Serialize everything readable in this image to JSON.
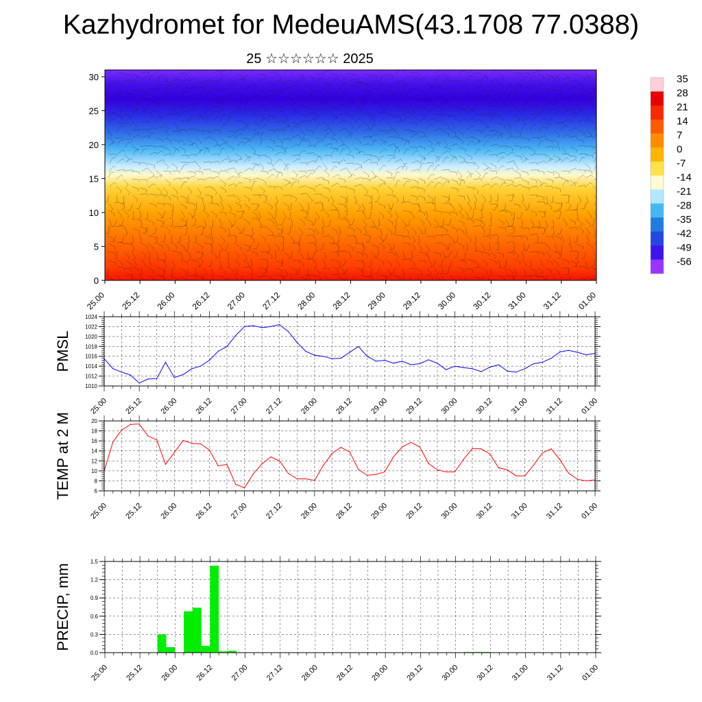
{
  "title": "Kazhydromet for MedeuAMS(43.1708 77.0388)",
  "subtitle": "25 ☆☆☆☆☆☆ 2025",
  "colors": {
    "pmsl_line": "#0000ff",
    "temp_line": "#ff0000",
    "precip_bar": "#00ee00"
  },
  "chart_data": [
    {
      "type": "heatmap",
      "title": "",
      "ylabel": "",
      "ylim": [
        0,
        31
      ],
      "y_ticks": [
        "0",
        "5",
        "10",
        "15",
        "20",
        "25",
        "30"
      ],
      "x_ticks": [
        "25.00",
        "25.12",
        "26.00",
        "26.12",
        "27.00",
        "27.12",
        "28.00",
        "28.12",
        "29.00",
        "29.12",
        "30.00",
        "30.12",
        "31.00",
        "31.12",
        "01.00"
      ],
      "colorbar": {
        "labels": [
          "35",
          "28",
          "21",
          "14",
          "7",
          "0",
          "-7",
          "-14",
          "-21",
          "-28",
          "-35",
          "-42",
          "-49",
          "-56"
        ],
        "colors": [
          "#ffd0d8",
          "#e80000",
          "#f52a00",
          "#ff5a00",
          "#ff8c00",
          "#ffb400",
          "#ffe14a",
          "#fffbd2",
          "#b0e8ff",
          "#45b8f4",
          "#1f7de0",
          "#2348e0",
          "#3d14ee",
          "#9b33ff"
        ]
      },
      "wind_barbs": true
    },
    {
      "type": "line",
      "ylabel": "PMSL",
      "ylim": [
        1010,
        1024
      ],
      "y_ticks": [
        "1010",
        "1012",
        "1014",
        "1016",
        "1018",
        "1020",
        "1022",
        "1024"
      ],
      "x_ticks": [
        "25.00",
        "25.12",
        "26.00",
        "26.12",
        "27.00",
        "27.12",
        "28.00",
        "28.12",
        "29.00",
        "29.12",
        "30.00",
        "30.12",
        "31.00",
        "31.12",
        "01.00"
      ],
      "grid": true,
      "series": [
        {
          "x": [
            0,
            3,
            6,
            9,
            12,
            15,
            18,
            21,
            24,
            27,
            30,
            33,
            36,
            39,
            42,
            45,
            48,
            51,
            54,
            57,
            60,
            63,
            66,
            69,
            72,
            75,
            78,
            81,
            84,
            87,
            90,
            93,
            96,
            99,
            102,
            105,
            108,
            111,
            114,
            117,
            120,
            123,
            126,
            129,
            132,
            135,
            138,
            141,
            144,
            147,
            150,
            153,
            156,
            159,
            162,
            165,
            168
          ],
          "values": [
            1015.5,
            1013.5,
            1012.8,
            1012.2,
            1010.6,
            1011.4,
            1011.5,
            1014.8,
            1011.7,
            1012.3,
            1013.5,
            1014.0,
            1015.2,
            1017.0,
            1018.0,
            1020.2,
            1022.0,
            1022.2,
            1021.8,
            1022.0,
            1022.4,
            1021.0,
            1018.8,
            1017.0,
            1016.2,
            1016.0,
            1015.5,
            1015.6,
            1016.8,
            1018.0,
            1016.0,
            1015.0,
            1015.2,
            1014.6,
            1015.0,
            1014.3,
            1014.5,
            1015.3,
            1014.6,
            1013.3,
            1014.0,
            1013.7,
            1013.5,
            1012.9,
            1013.8,
            1014.3,
            1013.0,
            1012.8,
            1013.5,
            1014.5,
            1014.8,
            1015.6,
            1016.9,
            1017.2,
            1016.8,
            1016.3,
            1016.6
          ]
        }
      ]
    },
    {
      "type": "line",
      "ylabel": "TEMP at 2 M",
      "ylim": [
        6,
        20
      ],
      "y_ticks": [
        "6",
        "8",
        "10",
        "12",
        "14",
        "16",
        "18",
        "20"
      ],
      "x_ticks": [
        "25.00",
        "25.12",
        "26.00",
        "26.12",
        "27.00",
        "27.12",
        "28.00",
        "28.12",
        "29.00",
        "29.12",
        "30.00",
        "30.12",
        "31.00",
        "31.12",
        "01.00"
      ],
      "grid": true,
      "series": [
        {
          "x": [
            0,
            3,
            6,
            9,
            12,
            15,
            18,
            21,
            24,
            27,
            30,
            33,
            36,
            39,
            42,
            45,
            48,
            51,
            54,
            57,
            60,
            63,
            66,
            69,
            72,
            75,
            78,
            81,
            84,
            87,
            90,
            93,
            96,
            99,
            102,
            105,
            108,
            111,
            114,
            117,
            120,
            123,
            126,
            129,
            132,
            135,
            138,
            141,
            144,
            147,
            150,
            153,
            156,
            159,
            162,
            165,
            168
          ],
          "values": [
            10.0,
            15.8,
            18.2,
            19.3,
            19.4,
            17.0,
            16.2,
            11.3,
            13.7,
            16.1,
            15.5,
            15.4,
            14.2,
            11.0,
            11.3,
            7.3,
            6.6,
            9.4,
            11.4,
            12.8,
            12.0,
            9.5,
            8.4,
            8.4,
            8.1,
            11.1,
            13.5,
            14.7,
            13.8,
            10.3,
            9.1,
            9.3,
            9.8,
            12.8,
            14.8,
            15.7,
            14.8,
            11.5,
            10.2,
            9.8,
            9.8,
            12.3,
            14.5,
            14.4,
            13.4,
            10.6,
            10.2,
            9.0,
            9.0,
            11.2,
            13.6,
            14.4,
            12.2,
            9.5,
            8.3,
            8.0,
            8.2
          ]
        }
      ]
    },
    {
      "type": "bar",
      "ylabel": "PRECIP, mm",
      "ylim": [
        0,
        1.5
      ],
      "y_ticks": [
        "0.0",
        "0.3",
        "0.6",
        "0.9",
        "1.2",
        "1.5"
      ],
      "x_ticks": [
        "25.00",
        "25.12",
        "26.00",
        "26.12",
        "27.00",
        "27.12",
        "28.00",
        "28.12",
        "29.00",
        "29.12",
        "30.00",
        "30.12",
        "31.00",
        "31.12",
        "01.00"
      ],
      "grid": true,
      "series": [
        {
          "x": [
            19.5,
            22.5,
            28.5,
            31.5,
            34.5,
            37.5,
            40.5,
            43.5,
            124.5,
            127.5,
            130.5
          ],
          "values": [
            0.3,
            0.09,
            0.68,
            0.74,
            0.11,
            1.43,
            0.02,
            0.03,
            0.01,
            0.01,
            0.01
          ]
        }
      ]
    }
  ]
}
